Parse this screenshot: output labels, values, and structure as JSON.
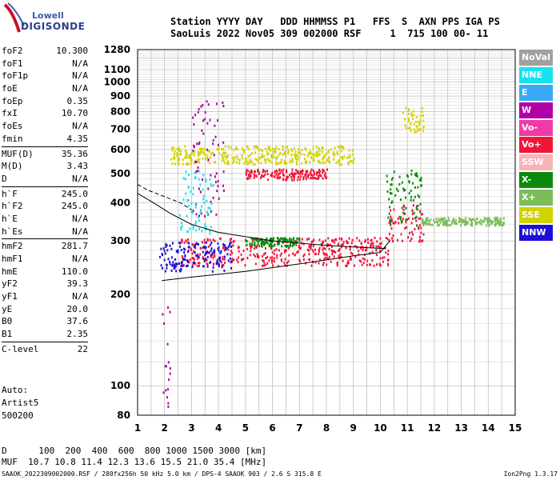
{
  "logo": {
    "line1": "Lowell",
    "line2": "DIGISONDE"
  },
  "header": {
    "row1": "Station YYYY DAY   DDD HHMMSS P1   FFS  S  AXN PPS IGA PS",
    "row2": "SaoLuis 2022 Nov05 309 002000 RSF     1  715 100 00- 11"
  },
  "params": {
    "group1": [
      {
        "name": "foF2",
        "value": "10.300"
      },
      {
        "name": "foF1",
        "value": "N/A"
      },
      {
        "name": "foF1p",
        "value": "N/A"
      },
      {
        "name": "foE",
        "value": "N/A"
      },
      {
        "name": "foEp",
        "value": "0.35"
      },
      {
        "name": "fxI",
        "value": "10.70"
      },
      {
        "name": "foEs",
        "value": "N/A"
      },
      {
        "name": "fmin",
        "value": "4.35"
      }
    ],
    "group2": [
      {
        "name": "MUF(D)",
        "value": "35.36"
      },
      {
        "name": "M(D)",
        "value": "3.43"
      },
      {
        "name": "D",
        "value": "N/A"
      }
    ],
    "group3": [
      {
        "name": "h`F",
        "value": "245.0"
      },
      {
        "name": "h`F2",
        "value": "245.0"
      },
      {
        "name": "h`E",
        "value": "N/A"
      },
      {
        "name": "h`Es",
        "value": "N/A"
      }
    ],
    "group4": [
      {
        "name": "hmF2",
        "value": "281.7"
      },
      {
        "name": "hmF1",
        "value": "N/A"
      },
      {
        "name": "hmE",
        "value": "110.0"
      },
      {
        "name": "yF2",
        "value": "39.3"
      },
      {
        "name": "yF1",
        "value": "N/A"
      },
      {
        "name": "yE",
        "value": "20.0"
      },
      {
        "name": "B0",
        "value": "37.6"
      },
      {
        "name": "B1",
        "value": "2.35"
      }
    ],
    "group5": [
      {
        "name": "C-level",
        "value": "22"
      }
    ],
    "auto": [
      "Auto:",
      "Artist5",
      "500200"
    ]
  },
  "legend": [
    {
      "label": "NoVal",
      "color": "#a0a0a0"
    },
    {
      "label": "NNE",
      "color": "#16e3f0"
    },
    {
      "label": "E",
      "color": "#3aa8f2"
    },
    {
      "label": "W",
      "color": "#b000a6"
    },
    {
      "label": "Vo-",
      "color": "#f03aa8"
    },
    {
      "label": "Vo+",
      "color": "#f01638"
    },
    {
      "label": "SSW",
      "color": "#f8b4b8"
    },
    {
      "label": "X-",
      "color": "#0a8a0a"
    },
    {
      "label": "X+",
      "color": "#7cbc5a"
    },
    {
      "label": "SSE",
      "color": "#d2d200"
    },
    {
      "label": "NNW",
      "color": "#1a10d8"
    }
  ],
  "chart_data": {
    "type": "scatter",
    "title": "",
    "xlabel": "",
    "ylabel": "",
    "xlim": [
      1,
      15
    ],
    "ylim": [
      80,
      1280
    ],
    "y_scale": "log",
    "x_ticks": [
      1,
      2,
      3,
      4,
      5,
      6,
      7,
      8,
      9,
      10,
      11,
      12,
      13,
      14,
      15
    ],
    "y_ticks": [
      80,
      100,
      200,
      300,
      400,
      500,
      600,
      700,
      800,
      900,
      1000,
      1100,
      1280
    ],
    "grid": true,
    "series": [
      {
        "label": "Vo+",
        "clusters": [
          {
            "x": [
              2.6,
              10.3
            ],
            "y": [
              250,
              310
            ]
          },
          {
            "x": [
              10.3,
              11.6
            ],
            "y": [
              300,
              400
            ]
          },
          {
            "x": [
              5.0,
              8.0
            ],
            "y": [
              480,
              520
            ]
          }
        ]
      },
      {
        "label": "NNW",
        "clusters": [
          {
            "x": [
              1.8,
              4.5
            ],
            "y": [
              240,
              300
            ]
          }
        ]
      },
      {
        "label": "X-",
        "clusters": [
          {
            "x": [
              10.2,
              11.5
            ],
            "y": [
              340,
              520
            ]
          },
          {
            "x": [
              5.0,
              7.0
            ],
            "y": [
              290,
              310
            ]
          }
        ]
      },
      {
        "label": "SSE",
        "clusters": [
          {
            "x": [
              2.2,
              9.0
            ],
            "y": [
              540,
              620
            ]
          },
          {
            "x": [
              10.8,
              11.6
            ],
            "y": [
              690,
              830
            ]
          }
        ]
      },
      {
        "label": "W",
        "clusters": [
          {
            "x": [
              3.0,
              4.2
            ],
            "y": [
              360,
              880
            ]
          },
          {
            "x": [
              1.9,
              2.2
            ],
            "y": [
              80,
              200
            ]
          }
        ]
      },
      {
        "label": "NNE",
        "clusters": [
          {
            "x": [
              2.5,
              3.8
            ],
            "y": [
              320,
              520
            ]
          }
        ]
      },
      {
        "label": "X+",
        "clusters": [
          {
            "x": [
              11.5,
              14.6
            ],
            "y": [
              340,
              360
            ]
          }
        ]
      }
    ],
    "lines": [
      {
        "name": "virtual-height-trace",
        "style": "solid",
        "x": [
          1.9,
          3.0,
          5.0,
          7.0,
          9.0,
          10.0,
          10.35
        ],
        "y": [
          222,
          228,
          238,
          252,
          268,
          275,
          300
        ]
      },
      {
        "name": "profile-trace",
        "style": "solid",
        "x": [
          1.0,
          1.6,
          2.2,
          3.0,
          4.0,
          6.0,
          8.0,
          9.5,
          10.2
        ],
        "y": [
          430,
          400,
          370,
          340,
          320,
          300,
          290,
          285,
          283
        ]
      },
      {
        "name": "profile-dashed",
        "style": "dashed",
        "x": [
          1.0,
          1.4,
          2.0,
          2.6,
          3.0
        ],
        "y": [
          460,
          440,
          420,
          400,
          380
        ]
      }
    ]
  },
  "footer": {
    "line1": "D      100  200  400  600  800 1000 1500 3000 [km]",
    "line2": "MUF  10.7 10.8 11.4 12.3 13.6 15.5 21.0 35.4 [MHz]",
    "line3": "SAAOK_2022309002000.RSF / 280fx256h 50 kHz 5.0 km / DPS-4 SAAOK 903 / 2.6 S 315.8 E",
    "version": "Ion2Png 1.3.17"
  }
}
